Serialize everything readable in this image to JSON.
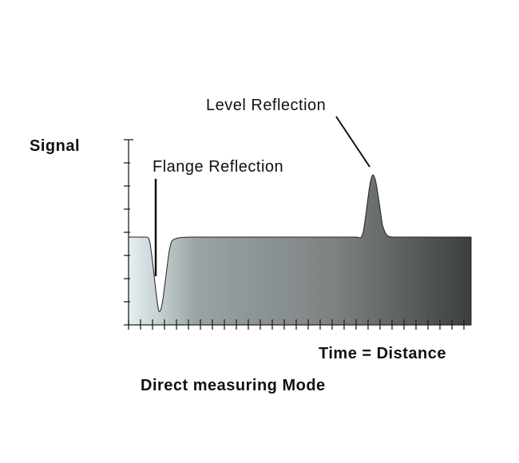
{
  "labels": {
    "y_axis": "Signal",
    "x_axis": "Time = Distance",
    "flange": "Flange Reflection",
    "level": "Level Reflection",
    "caption": "Direct measuring Mode"
  },
  "colors": {
    "fill_start": "#e4eef2",
    "fill_mid": "#8c9293",
    "fill_end": "#3e4141",
    "line": "#111111"
  }
}
